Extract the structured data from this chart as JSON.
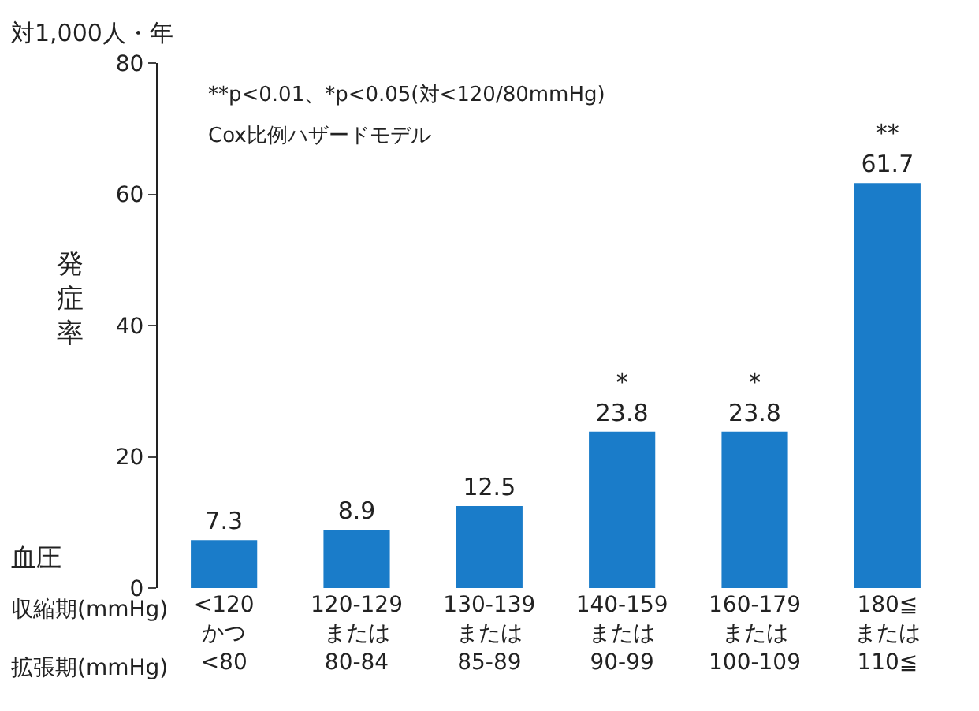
{
  "chart_data": {
    "type": "bar",
    "categories": [
      "<120\nかつ\n<80",
      "120-129\nまたは\n80-84",
      "130-139\nまたは\n85-89",
      "140-159\nまたは\n90-99",
      "160-179\nまたは\n100-109",
      "180≦\nまたは\n110≦"
    ],
    "values": [
      7.3,
      8.9,
      12.5,
      23.8,
      23.8,
      61.7
    ],
    "value_labels": [
      "7.3",
      "8.9",
      "12.5",
      "*\n23.8",
      "*\n23.8",
      "**\n61.7"
    ],
    "color": "#1a7cc9",
    "ylabel": "発症率",
    "ylim": [
      0,
      80
    ],
    "yticks": [
      0,
      20,
      40,
      60,
      80
    ],
    "legend": false,
    "annotations": [
      "対1,000人・年",
      "**p<0.01、*p<0.05(対<120/80mmHg)",
      "Cox比例ハザードモデル",
      "血圧",
      "収縮期(mmHg)",
      "拡張期(mmHg)"
    ]
  }
}
